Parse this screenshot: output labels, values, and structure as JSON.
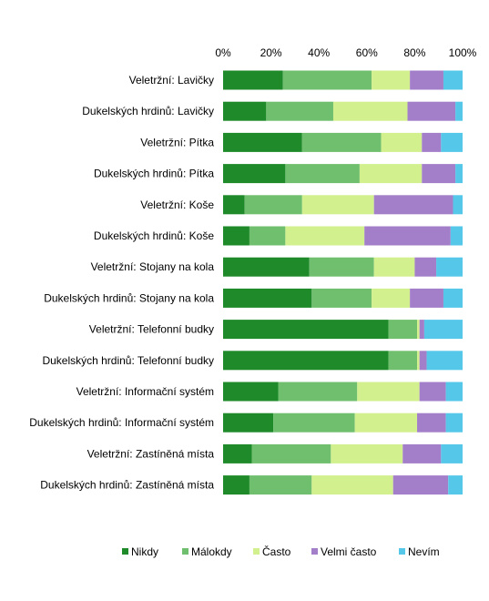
{
  "chart_data": {
    "type": "bar",
    "orientation": "horizontal",
    "stacked": "percent",
    "xaxis_position": "top",
    "xlim": [
      0,
      100
    ],
    "ticks": [
      "0%",
      "20%",
      "40%",
      "60%",
      "80%",
      "100%"
    ],
    "grid": false,
    "legend_position": "bottom",
    "categories": [
      "Veletržní: Lavičky",
      "Dukelských hrdinů: Lavičky",
      "Veletržní: Pítka",
      "Dukelských hrdinů: Pítka",
      "Veletržní: Koše",
      "Dukelských hrdinů: Koše",
      "Veletržní: Stojany na kola",
      "Dukelských hrdinů: Stojany na kola",
      "Veletržní: Telefonní budky",
      "Dukelských hrdinů: Telefonní budky",
      "Veletržní: Informační systém",
      "Dukelských hrdinů: Informační systém",
      "Veletržní: Zastíněná místa",
      "Dukelských hrdinů: Zastíněná místa"
    ],
    "series": [
      {
        "name": "Nikdy",
        "color": "#1e8a2a",
        "values": [
          25,
          18,
          33,
          26,
          9,
          11,
          36,
          37,
          69,
          69,
          23,
          21,
          12,
          11
        ]
      },
      {
        "name": "Málokdy",
        "color": "#70bf6e",
        "values": [
          37,
          28,
          33,
          31,
          24,
          15,
          27,
          25,
          12,
          12,
          33,
          34,
          33,
          26
        ]
      },
      {
        "name": "Často",
        "color": "#d2f08e",
        "values": [
          16,
          31,
          17,
          26,
          30,
          33,
          17,
          16,
          1,
          1,
          26,
          26,
          30,
          34
        ]
      },
      {
        "name": "Velmi často",
        "color": "#a47fc9",
        "values": [
          14,
          20,
          8,
          14,
          33,
          36,
          9,
          14,
          2,
          3,
          11,
          12,
          16,
          23
        ]
      },
      {
        "name": "Nevím",
        "color": "#55c8ea",
        "values": [
          8,
          3,
          9,
          3,
          4,
          5,
          11,
          8,
          16,
          15,
          7,
          7,
          9,
          6
        ]
      }
    ]
  }
}
